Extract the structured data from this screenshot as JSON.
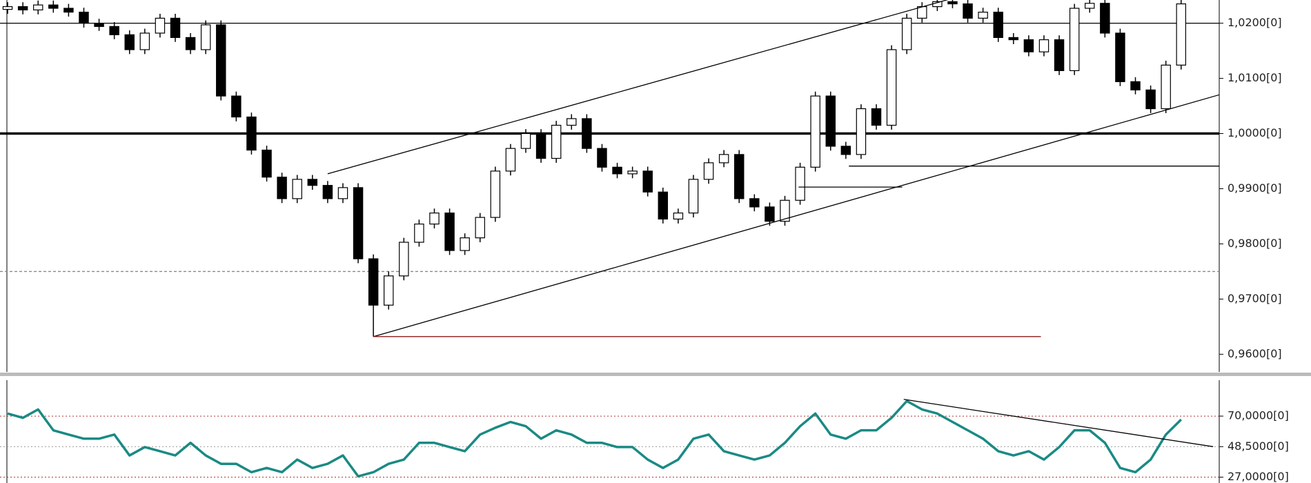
{
  "chart_data": [
    {
      "type": "candlestick",
      "up_color": "#ffffff",
      "down_color": "#000000",
      "ylim": [
        0.9568,
        1.0242
      ],
      "yticks": [
        {
          "value": 1.02,
          "label": "1,0200[0]"
        },
        {
          "value": 1.01,
          "label": "1,0100[0]"
        },
        {
          "value": 1.0,
          "label": "1,0000[0]"
        },
        {
          "value": 0.99,
          "label": "0,9900[0]"
        },
        {
          "value": 0.98,
          "label": "0,9800[0]"
        },
        {
          "value": 0.97,
          "label": "0,9700[0]"
        },
        {
          "value": 0.96,
          "label": "0,9600[0]"
        }
      ],
      "open": [
        1.0225,
        1.023,
        1.0224,
        1.0233,
        1.0227,
        1.022,
        1.02,
        1.0194,
        1.0179,
        1.0152,
        1.0182,
        1.0209,
        1.0174,
        1.0152,
        1.0197,
        1.0068,
        1.003,
        0.997,
        0.9921,
        0.9882,
        0.9917,
        0.9906,
        0.9882,
        0.9902,
        0.9773,
        0.9689,
        0.9742,
        0.9803,
        0.9836,
        0.9856,
        0.9788,
        0.9811,
        0.9848,
        0.9932,
        0.9973,
        1.0,
        0.9955,
        1.0015,
        1.0027,
        0.9973,
        0.9939,
        0.9927,
        0.9932,
        0.9894,
        0.9845,
        0.9856,
        0.9917,
        0.9947,
        0.9962,
        0.9882,
        0.9867,
        0.9841,
        0.9879,
        0.9939,
        1.0068,
        0.9977,
        0.9962,
        1.0045,
        1.0015,
        1.0152,
        1.0209,
        1.023,
        1.0239,
        1.0235,
        1.0209,
        1.022,
        1.0174,
        1.017,
        1.0148,
        1.017,
        1.0114,
        1.0227,
        1.0236,
        1.0182,
        1.0094,
        1.0079,
        1.0045,
        1.0124
      ],
      "high": [
        1.0238,
        1.0238,
        1.0241,
        1.0241,
        1.0235,
        1.0228,
        1.0208,
        1.0202,
        1.0187,
        1.019,
        1.0217,
        1.0217,
        1.0182,
        1.0205,
        1.0205,
        1.0076,
        1.0038,
        0.9978,
        0.9929,
        0.9925,
        0.9925,
        0.9914,
        0.991,
        0.991,
        0.9781,
        0.975,
        0.9811,
        0.9844,
        0.9864,
        0.9864,
        0.9819,
        0.9856,
        0.994,
        0.9981,
        1.0008,
        1.0008,
        1.0023,
        1.0035,
        1.0035,
        0.9981,
        0.9947,
        0.994,
        0.994,
        0.9902,
        0.9864,
        0.9925,
        0.9955,
        0.997,
        0.997,
        0.989,
        0.9875,
        0.9887,
        0.9947,
        1.0076,
        1.0076,
        0.9985,
        1.0053,
        1.0053,
        1.016,
        1.0217,
        1.0238,
        1.0247,
        1.0247,
        1.0243,
        1.0228,
        1.0228,
        1.0182,
        1.0178,
        1.0178,
        1.0178,
        1.0235,
        1.0244,
        1.0244,
        1.019,
        1.0102,
        1.0087,
        1.0132,
        1.0243
      ],
      "low": [
        1.0217,
        1.0216,
        1.0216,
        1.0219,
        1.0212,
        1.0192,
        1.0186,
        1.0171,
        1.0144,
        1.0144,
        1.0174,
        1.0166,
        1.0144,
        1.0144,
        1.006,
        1.0022,
        0.9962,
        0.9913,
        0.9874,
        0.9874,
        0.9898,
        0.9874,
        0.9874,
        0.9765,
        0.9632,
        0.9681,
        0.9734,
        0.9795,
        0.9828,
        0.978,
        0.978,
        0.9803,
        0.984,
        0.9924,
        0.9965,
        0.9947,
        0.9947,
        1.0007,
        0.9965,
        0.9931,
        0.9919,
        0.9919,
        0.9886,
        0.9837,
        0.9837,
        0.9848,
        0.9909,
        0.9939,
        0.9874,
        0.9859,
        0.9833,
        0.9833,
        0.9871,
        0.9931,
        0.9969,
        0.9954,
        0.9954,
        1.0007,
        1.0007,
        1.0144,
        1.0201,
        1.0222,
        1.0227,
        1.0201,
        1.0201,
        1.0166,
        1.0162,
        1.014,
        1.014,
        1.0106,
        1.0106,
        1.0219,
        1.0174,
        1.0086,
        1.0071,
        1.0037,
        1.0037,
        1.0116
      ],
      "close": [
        1.023,
        1.0224,
        1.0233,
        1.0227,
        1.022,
        1.02,
        1.0194,
        1.0179,
        1.0152,
        1.0182,
        1.0209,
        1.0174,
        1.0152,
        1.0197,
        1.0068,
        1.003,
        0.997,
        0.9921,
        0.9882,
        0.9917,
        0.9906,
        0.9882,
        0.9902,
        0.9773,
        0.9689,
        0.9742,
        0.9803,
        0.9836,
        0.9856,
        0.9788,
        0.9811,
        0.9848,
        0.9932,
        0.9973,
        1.0,
        0.9955,
        1.0015,
        1.0027,
        0.9973,
        0.9939,
        0.9927,
        0.9932,
        0.9894,
        0.9845,
        0.9856,
        0.9917,
        0.9947,
        0.9962,
        0.9882,
        0.9867,
        0.9841,
        0.9879,
        0.9939,
        1.0068,
        0.9977,
        0.9962,
        1.0045,
        1.0015,
        1.0152,
        1.0209,
        1.023,
        1.0239,
        1.0235,
        1.0209,
        1.022,
        1.0174,
        1.017,
        1.0148,
        1.017,
        1.0114,
        1.0227,
        1.0236,
        1.0182,
        1.0094,
        1.0079,
        1.0045,
        1.0124,
        1.0235
      ],
      "hlines": [
        {
          "y": 1.02,
          "style": "solid"
        },
        {
          "y": 1.0,
          "style": "thick"
        },
        {
          "y": 0.975,
          "style": "dashed"
        }
      ],
      "segments": [
        {
          "x": [
            21,
            62
          ],
          "y": [
            0.9927,
            1.0245
          ],
          "color": "#000000"
        },
        {
          "x": [
            24,
            79.6
          ],
          "y": [
            0.9632,
            1.0071
          ],
          "color": "#000000"
        },
        {
          "x": [
            24,
            67.8
          ],
          "y": [
            0.9632,
            0.9632
          ],
          "color": "#8b1a1a"
        },
        {
          "x": [
            55.2,
            79.6
          ],
          "y": [
            0.9941,
            0.9941
          ],
          "color": "#000000"
        },
        {
          "x": [
            51.9,
            58.7
          ],
          "y": [
            0.9903,
            0.9903
          ],
          "color": "#000000"
        }
      ]
    },
    {
      "type": "line",
      "color": "#1a8a84",
      "ylim": [
        22.9,
        95.3
      ],
      "yticks": [
        {
          "value": 70,
          "label": "70,0000[0]"
        },
        {
          "value": 48.5,
          "label": "48,5000[0]"
        },
        {
          "value": 27,
          "label": "27,0000[0]"
        }
      ],
      "level_colors": [
        "#b03030",
        "#999999",
        "#b03030"
      ],
      "values": [
        71.8,
        68.8,
        74.7,
        60.0,
        57.0,
        54.1,
        54.1,
        57.0,
        42.3,
        48.2,
        45.3,
        42.3,
        51.2,
        42.3,
        36.4,
        36.4,
        30.5,
        33.5,
        30.5,
        39.4,
        33.5,
        36.4,
        42.3,
        27.6,
        30.5,
        36.4,
        39.4,
        51.2,
        51.2,
        48.2,
        45.3,
        57.0,
        61.8,
        65.9,
        62.9,
        54.1,
        60.0,
        57.0,
        51.2,
        51.2,
        48.2,
        48.2,
        39.4,
        33.5,
        39.4,
        54.1,
        57.0,
        45.3,
        42.3,
        39.4,
        42.3,
        51.2,
        62.9,
        71.8,
        57.0,
        54.1,
        60.0,
        60.0,
        68.8,
        80.6,
        74.7,
        71.8,
        65.9,
        60.0,
        54.1,
        45.3,
        42.3,
        45.3,
        39.4,
        48.2,
        60.0,
        60.0,
        51.2,
        33.5,
        30.5,
        39.4,
        57.0,
        67.6
      ],
      "segments": [
        {
          "x": [
            58.8,
            79.1
          ],
          "y": [
            81.8,
            48.5
          ],
          "color": "#000000"
        }
      ]
    }
  ]
}
